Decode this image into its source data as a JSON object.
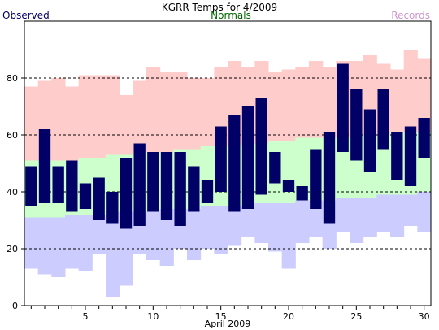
{
  "chart_data": {
    "type": "bar",
    "title": "KGRR Temps for 4/2009",
    "xlabel": "April 2009",
    "ylabel": "",
    "xlim": [
      0.5,
      30.5
    ],
    "ylim": [
      0,
      100
    ],
    "x_ticks": [
      5,
      10,
      15,
      20,
      25,
      30
    ],
    "y_ticks": [
      0,
      20,
      40,
      60,
      80
    ],
    "grid": "horizontal dashed at 20, 40, 60, 80",
    "legend": {
      "observed": "Observed",
      "normals": "Normals",
      "records": "Records",
      "placement": "top"
    },
    "colors": {
      "observed": "#000066",
      "normals": "#ccffcc",
      "records": "#ffcccc",
      "records_low": "#ccccff",
      "normals_label": "#006600",
      "records_label": "#cc99cc",
      "observed_label": "#000066"
    },
    "days": [
      1,
      2,
      3,
      4,
      5,
      6,
      7,
      8,
      9,
      10,
      11,
      12,
      13,
      14,
      15,
      16,
      17,
      18,
      19,
      20,
      21,
      22,
      23,
      24,
      25,
      26,
      27,
      28,
      29,
      30
    ],
    "record_high": [
      77,
      79,
      80,
      77,
      81,
      81,
      81,
      74,
      79,
      84,
      82,
      82,
      80,
      80,
      84,
      86,
      84,
      86,
      82,
      83,
      84,
      86,
      84,
      86,
      86,
      88,
      85,
      83,
      90,
      87
    ],
    "record_low": [
      13,
      11,
      10,
      13,
      12,
      18,
      3,
      7,
      18,
      16,
      14,
      20,
      16,
      20,
      18,
      21,
      24,
      22,
      19,
      13,
      22,
      24,
      20,
      26,
      22,
      24,
      26,
      24,
      28,
      26
    ],
    "normal_high": [
      51,
      51,
      51,
      51,
      52,
      52,
      53,
      53,
      54,
      54,
      54,
      55,
      55,
      56,
      56,
      56,
      57,
      57,
      58,
      58,
      59,
      59,
      59,
      59,
      60,
      60,
      60,
      61,
      61,
      61
    ],
    "normal_low": [
      31,
      31,
      31,
      32,
      32,
      32,
      33,
      33,
      33,
      33,
      34,
      34,
      34,
      35,
      35,
      35,
      35,
      36,
      36,
      36,
      37,
      37,
      37,
      38,
      38,
      38,
      39,
      39,
      39,
      40
    ],
    "observed_high": [
      49,
      62,
      49,
      51,
      43,
      45,
      40,
      52,
      57,
      54,
      54,
      54,
      49,
      44,
      63,
      67,
      70,
      73,
      54,
      44,
      42,
      55,
      61,
      85,
      76,
      69,
      76,
      61,
      63,
      66
    ],
    "observed_low": [
      35,
      36,
      36,
      33,
      34,
      30,
      29,
      27,
      28,
      33,
      30,
      28,
      33,
      36,
      40,
      33,
      34,
      39,
      43,
      40,
      37,
      34,
      29,
      54,
      51,
      47,
      55,
      44,
      42,
      52
    ]
  }
}
